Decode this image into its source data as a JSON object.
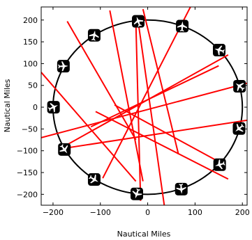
{
  "chart_data": {
    "type": "scatter",
    "title": "",
    "xlabel": "Nautical Miles",
    "ylabel": "Nautical Miles",
    "xlim": [
      -225,
      210
    ],
    "ylim": [
      -225,
      230
    ],
    "xticks": [
      -200,
      -100,
      0,
      100,
      200
    ],
    "xtick_labels": [
      "−200",
      "−100",
      "0",
      "100",
      "200"
    ],
    "yticks": [
      -200,
      -150,
      -100,
      -50,
      0,
      50,
      100,
      150,
      200
    ],
    "ytick_labels": [
      "−200",
      "−150",
      "−100",
      "−50",
      "0",
      "50",
      "100",
      "150",
      "200"
    ],
    "grid": false,
    "circle": {
      "center": [
        0,
        0
      ],
      "radius": 200,
      "color": "#000000"
    },
    "aircraft": [
      {
        "x": -20,
        "y": 197
      },
      {
        "x": 73,
        "y": 186
      },
      {
        "x": 151,
        "y": 131
      },
      {
        "x": 194,
        "y": 48
      },
      {
        "x": 193,
        "y": -49
      },
      {
        "x": 152,
        "y": -132
      },
      {
        "x": 71,
        "y": -188
      },
      {
        "x": -23,
        "y": -199
      },
      {
        "x": -113,
        "y": -166
      },
      {
        "x": -176,
        "y": -97
      },
      {
        "x": -199,
        "y": 0
      },
      {
        "x": -178,
        "y": 94
      },
      {
        "x": -113,
        "y": 165
      }
    ],
    "series": [
      {
        "type": "segments",
        "color": "#ff0000",
        "segments": [
          {
            "x": [
              -170,
              -25
            ],
            "y": [
              197,
              -75
            ]
          },
          {
            "x": [
              -80,
              -10
            ],
            "y": [
              222,
              -170
            ]
          },
          {
            "x": [
              -25,
              -15
            ],
            "y": [
              195,
              -215
            ]
          },
          {
            "x": [
              -20,
              35
            ],
            "y": [
              195,
              -225
            ]
          },
          {
            "x": [
              -10,
              65
            ],
            "y": [
              225,
              -108
            ]
          },
          {
            "x": [
              -95,
              95
            ],
            "y": [
              -163,
              240
            ]
          },
          {
            "x": [
              -225,
              -25
            ],
            "y": [
              80,
              -170
            ]
          },
          {
            "x": [
              -185,
              170
            ],
            "y": [
              -95,
              120
            ]
          },
          {
            "x": [
              -120,
              150
            ],
            "y": [
              -45,
              95
            ]
          },
          {
            "x": [
              -225,
              210
            ],
            "y": [
              -70,
              55
            ]
          },
          {
            "x": [
              -180,
              210
            ],
            "y": [
              -95,
              -30
            ]
          },
          {
            "x": [
              -70,
              150
            ],
            "y": [
              5,
              -125
            ]
          },
          {
            "x": [
              -110,
              170
            ],
            "y": [
              -10,
              -165
            ]
          }
        ]
      }
    ]
  }
}
